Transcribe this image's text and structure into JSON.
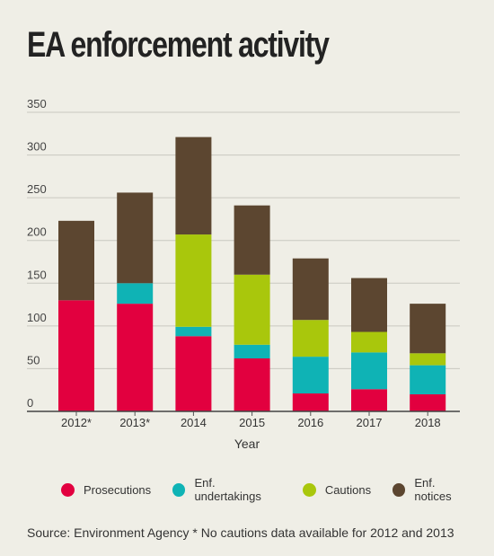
{
  "title": "EA enforcement activity",
  "source": "Source: Environment Agency  * No cautions data available for 2012 and 2013",
  "chart_data": {
    "type": "bar",
    "stacked": true,
    "categories": [
      "2012*",
      "2013*",
      "2014",
      "2015",
      "2016",
      "2017",
      "2018"
    ],
    "xlabel": "Year",
    "ylabel": "",
    "ylim": [
      0,
      350
    ],
    "yticks": [
      0,
      50,
      100,
      150,
      200,
      250,
      300,
      350
    ],
    "grid": true,
    "legend_position": "bottom",
    "series": [
      {
        "name": "Prosecutions",
        "color": "#e2003f",
        "values": [
          130,
          126,
          88,
          62,
          21,
          26,
          20
        ]
      },
      {
        "name": "Enf. undertakings",
        "color": "#0fb3b5",
        "values": [
          0,
          24,
          11,
          16,
          43,
          43,
          34
        ]
      },
      {
        "name": "Cautions",
        "color": "#a9c70c",
        "values": [
          0,
          0,
          108,
          82,
          43,
          24,
          14
        ]
      },
      {
        "name": "Enf. notices",
        "color": "#5c4630",
        "values": [
          93,
          106,
          114,
          81,
          72,
          63,
          58
        ]
      }
    ]
  }
}
